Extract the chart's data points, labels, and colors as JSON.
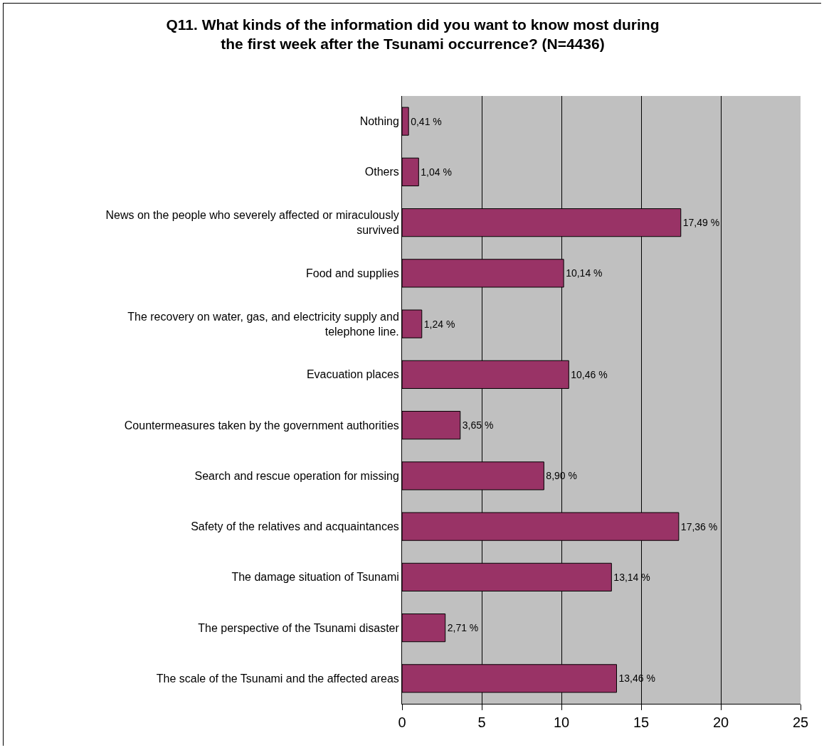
{
  "chart_data": {
    "type": "bar",
    "orientation": "horizontal",
    "title": "Q11. What kinds of the information did you want to know most during the first week after the Tsunami occurrence? (N=4436)",
    "categories": [
      "Nothing",
      "Others",
      "News on the people who severely affected or miraculously survived",
      "Food and supplies",
      "The recovery on water, gas, and electricity supply and telephone line.",
      "Evacuation places",
      "Countermeasures taken by the government authorities",
      "Search and rescue operation for missing",
      "Safety of the relatives and acquaintances",
      "The damage situation of Tsunami",
      "The perspective of the Tsunami disaster",
      "The scale of the Tsunami and the affected areas"
    ],
    "values": [
      0.41,
      1.04,
      17.49,
      10.14,
      1.24,
      10.46,
      3.65,
      8.9,
      17.36,
      13.14,
      2.71,
      13.46
    ],
    "value_labels": [
      "0,41 %",
      "1,04 %",
      "17,49 %",
      "10,14 %",
      "1,24 %",
      "10,46 %",
      "3,65 %",
      "8,90 %",
      "17,36 %",
      "13,14 %",
      "2,71 %",
      "13,46 %"
    ],
    "color": "#993366",
    "xlim": [
      0,
      25
    ],
    "xticks": [
      0,
      5,
      10,
      15,
      20,
      25
    ],
    "grid": "x"
  }
}
